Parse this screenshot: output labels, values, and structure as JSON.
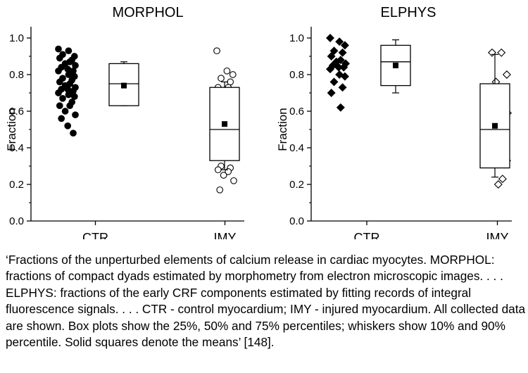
{
  "chart_data": [
    {
      "type": "scatter",
      "title": "MORPHOL",
      "ylabel": "Fraction",
      "xlabel": "",
      "ylim": [
        0,
        1
      ],
      "yticks": [
        "0.0",
        "0.2",
        "0.4",
        "0.6",
        "0.8",
        "1.0"
      ],
      "categories": [
        "CTR",
        "IMY"
      ],
      "grid": false,
      "series": [
        {
          "group": "CTR",
          "marker": "filled-circle",
          "values": [
            0.94,
            0.93,
            0.9,
            0.91,
            0.88,
            0.89,
            0.87,
            0.86,
            0.85,
            0.84,
            0.83,
            0.82,
            0.82,
            0.8,
            0.79,
            0.78,
            0.77,
            0.76,
            0.75,
            0.74,
            0.73,
            0.72,
            0.72,
            0.71,
            0.7,
            0.69,
            0.68,
            0.67,
            0.65,
            0.63,
            0.63,
            0.6,
            0.58,
            0.56,
            0.52,
            0.48
          ],
          "box": {
            "p10": 0.63,
            "q1": 0.63,
            "median": 0.75,
            "q3": 0.86,
            "p90": 0.87,
            "mean": 0.74
          }
        },
        {
          "group": "IMY",
          "marker": "open-circle",
          "values": [
            0.93,
            0.82,
            0.8,
            0.78,
            0.76,
            0.73,
            0.73,
            0.7,
            0.7,
            0.68,
            0.67,
            0.65,
            0.62,
            0.6,
            0.57,
            0.56,
            0.52,
            0.5,
            0.49,
            0.49,
            0.48,
            0.45,
            0.41,
            0.41,
            0.4,
            0.4,
            0.38,
            0.3,
            0.29,
            0.28,
            0.27,
            0.25,
            0.22,
            0.17
          ],
          "box": {
            "p10": 0.28,
            "q1": 0.33,
            "median": 0.5,
            "q3": 0.73,
            "p90": 0.76,
            "mean": 0.53
          }
        }
      ]
    },
    {
      "type": "scatter",
      "title": "ELPHYS",
      "ylabel": "Fraction",
      "xlabel": "",
      "ylim": [
        0,
        1
      ],
      "yticks": [
        "0.0",
        "0.2",
        "0.4",
        "0.6",
        "0.8",
        "1.0"
      ],
      "categories": [
        "CTR",
        "IMY"
      ],
      "grid": false,
      "series": [
        {
          "group": "CTR",
          "marker": "filled-diamond",
          "values": [
            1.0,
            0.98,
            0.96,
            0.93,
            0.92,
            0.9,
            0.88,
            0.87,
            0.86,
            0.85,
            0.84,
            0.84,
            0.83,
            0.8,
            0.79,
            0.76,
            0.73,
            0.7,
            0.62
          ],
          "box": {
            "p10": 0.7,
            "q1": 0.74,
            "median": 0.87,
            "q3": 0.96,
            "p90": 0.99,
            "mean": 0.85
          }
        },
        {
          "group": "IMY",
          "marker": "open-diamond",
          "values": [
            0.92,
            0.92,
            0.8,
            0.76,
            0.72,
            0.7,
            0.65,
            0.59,
            0.59,
            0.55,
            0.5,
            0.45,
            0.41,
            0.37,
            0.33,
            0.32,
            0.31,
            0.31,
            0.23,
            0.2
          ],
          "box": {
            "p10": 0.24,
            "q1": 0.29,
            "median": 0.5,
            "q3": 0.75,
            "p90": 0.91,
            "mean": 0.52
          }
        }
      ]
    }
  ],
  "caption": "‘Fractions of the unperturbed elements of calcium release in cardiac myocytes. MORPHOL: fractions of compact dyads estimated by morphometry from electron microscopic images. . . . ELPHYS: fractions of the early CRF components estimated by fitting records of integral fluorescence signals. . . . CTR - control myocardium; IMY - injured myocardium. All collected data are shown. Box plots show the 25%, 50% and 75% percentiles; whiskers show 10% and 90% percentile. Solid squares denote the means’ [148]."
}
